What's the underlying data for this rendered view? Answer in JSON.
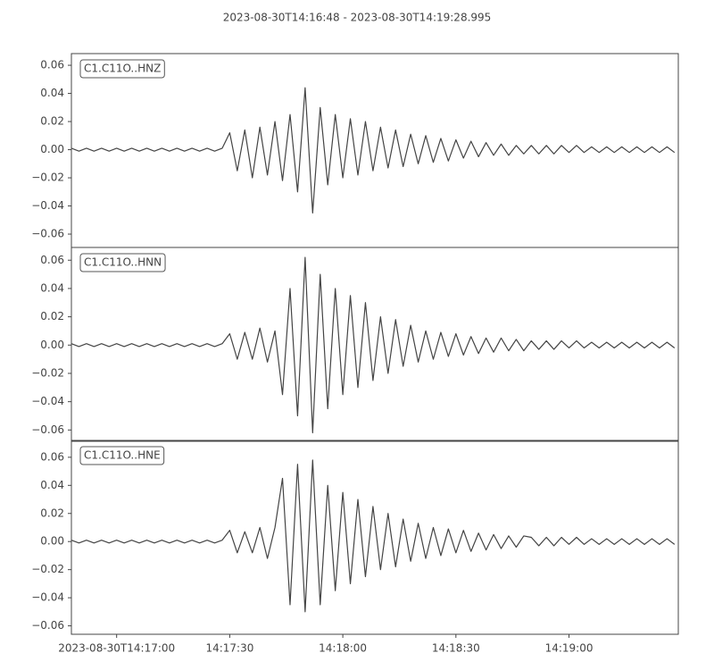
{
  "chart_data": [
    {
      "type": "line",
      "title": "2023-08-30T14:16:48  -  2023-08-30T14:19:28.995",
      "x": [
        "14:16:48",
        "14:16:50",
        "14:16:52",
        "14:16:54",
        "14:16:56",
        "14:16:58",
        "14:17:00",
        "14:17:02",
        "14:17:04",
        "14:17:06",
        "14:17:08",
        "14:17:10",
        "14:17:12",
        "14:17:14",
        "14:17:16",
        "14:17:18",
        "14:17:20",
        "14:17:22",
        "14:17:24",
        "14:17:26",
        "14:17:28",
        "14:17:30",
        "14:17:32",
        "14:17:34",
        "14:17:36",
        "14:17:38",
        "14:17:40",
        "14:17:42",
        "14:17:44",
        "14:17:46",
        "14:17:48",
        "14:17:50",
        "14:17:52",
        "14:17:54",
        "14:17:56",
        "14:17:58",
        "14:18:00",
        "14:18:02",
        "14:18:04",
        "14:18:06",
        "14:18:08",
        "14:18:10",
        "14:18:12",
        "14:18:14",
        "14:18:16",
        "14:18:18",
        "14:18:20",
        "14:18:22",
        "14:18:24",
        "14:18:26",
        "14:18:28",
        "14:18:30",
        "14:18:32",
        "14:18:34",
        "14:18:36",
        "14:18:38",
        "14:18:40",
        "14:18:42",
        "14:18:44",
        "14:18:46",
        "14:18:48",
        "14:18:50",
        "14:18:52",
        "14:18:54",
        "14:18:56",
        "14:18:58",
        "14:19:00",
        "14:19:02",
        "14:19:04",
        "14:19:06",
        "14:19:08",
        "14:19:10",
        "14:19:12",
        "14:19:14",
        "14:19:16",
        "14:19:18",
        "14:19:20",
        "14:19:22",
        "14:19:24",
        "14:19:26",
        "14:19:28"
      ],
      "series": [
        {
          "name": "C1.C11O..HNZ",
          "color": "#444444",
          "values": [
            0.001,
            -0.001,
            0.001,
            -0.001,
            0.001,
            -0.001,
            0.001,
            -0.001,
            0.001,
            -0.001,
            0.001,
            -0.001,
            0.001,
            -0.001,
            0.001,
            -0.001,
            0.001,
            -0.001,
            0.001,
            -0.001,
            0.001,
            0.012,
            -0.015,
            0.014,
            -0.02,
            0.016,
            -0.018,
            0.02,
            -0.022,
            0.025,
            -0.03,
            0.044,
            -0.045,
            0.03,
            -0.025,
            0.025,
            -0.02,
            0.022,
            -0.018,
            0.02,
            -0.015,
            0.016,
            -0.013,
            0.014,
            -0.012,
            0.011,
            -0.01,
            0.01,
            -0.009,
            0.008,
            -0.008,
            0.007,
            -0.006,
            0.006,
            -0.005,
            0.005,
            -0.004,
            0.004,
            -0.004,
            0.003,
            -0.003,
            0.003,
            -0.003,
            0.003,
            -0.003,
            0.003,
            -0.002,
            0.003,
            -0.002,
            0.002,
            -0.002,
            0.002,
            -0.002,
            0.002,
            -0.002,
            0.002,
            -0.002,
            0.002,
            -0.002,
            0.002,
            -0.002
          ]
        }
      ],
      "xlim": [
        "14:16:48",
        "14:19:28.995"
      ],
      "ylim": [
        -0.0695,
        0.0683
      ],
      "yticks": [
        {
          "value": -0.06,
          "label": "−0.06"
        },
        {
          "value": -0.04,
          "label": "−0.04"
        },
        {
          "value": -0.02,
          "label": "−0.02"
        },
        {
          "value": 0,
          "label": "0.00"
        },
        0.02,
        0.04,
        0.06
      ]
    },
    {
      "type": "line",
      "x": [
        "14:16:48",
        "14:16:50",
        "14:16:52",
        "14:16:54",
        "14:16:56",
        "14:16:58",
        "14:17:00",
        "14:17:02",
        "14:17:04",
        "14:17:06",
        "14:17:08",
        "14:17:10",
        "14:17:12",
        "14:17:14",
        "14:17:16",
        "14:17:18",
        "14:17:20",
        "14:17:22",
        "14:17:24",
        "14:17:26",
        "14:17:28",
        "14:17:30",
        "14:17:32",
        "14:17:34",
        "14:17:36",
        "14:17:38",
        "14:17:40",
        "14:17:42",
        "14:17:44",
        "14:17:46",
        "14:17:48",
        "14:17:50",
        "14:17:52",
        "14:17:54",
        "14:17:56",
        "14:17:58",
        "14:18:00",
        "14:18:02",
        "14:18:04",
        "14:18:06",
        "14:18:08",
        "14:18:10",
        "14:18:12",
        "14:18:14",
        "14:18:16",
        "14:18:18",
        "14:18:20",
        "14:18:22",
        "14:18:24",
        "14:18:26",
        "14:18:28",
        "14:18:30",
        "14:18:32",
        "14:18:34",
        "14:18:36",
        "14:18:38",
        "14:18:40",
        "14:18:42",
        "14:18:44",
        "14:18:46",
        "14:18:48",
        "14:18:50",
        "14:18:52",
        "14:18:54",
        "14:18:56",
        "14:18:58",
        "14:19:00",
        "14:19:02",
        "14:19:04",
        "14:19:06",
        "14:19:08",
        "14:19:10",
        "14:19:12",
        "14:19:14",
        "14:19:16",
        "14:19:18",
        "14:19:20",
        "14:19:22",
        "14:19:24",
        "14:19:26",
        "14:19:28"
      ],
      "series": [
        {
          "name": "C1.C11O..HNN",
          "color": "#444444",
          "values": [
            0.001,
            -0.001,
            0.001,
            -0.001,
            0.001,
            -0.001,
            0.001,
            -0.001,
            0.001,
            -0.001,
            0.001,
            -0.001,
            0.001,
            -0.001,
            0.001,
            -0.001,
            0.001,
            -0.001,
            0.001,
            -0.001,
            0.001,
            0.008,
            -0.01,
            0.009,
            -0.01,
            0.012,
            -0.012,
            0.01,
            -0.035,
            0.04,
            -0.05,
            0.062,
            -0.062,
            0.05,
            -0.045,
            0.04,
            -0.035,
            0.035,
            -0.03,
            0.03,
            -0.025,
            0.02,
            -0.02,
            0.018,
            -0.015,
            0.014,
            -0.012,
            0.01,
            -0.01,
            0.009,
            -0.008,
            0.008,
            -0.007,
            0.006,
            -0.006,
            0.005,
            -0.005,
            0.005,
            -0.004,
            0.004,
            -0.004,
            0.003,
            -0.003,
            0.003,
            -0.003,
            0.003,
            -0.002,
            0.003,
            -0.002,
            0.002,
            -0.002,
            0.002,
            -0.002,
            0.002,
            -0.002,
            0.002,
            -0.002,
            0.002,
            -0.002,
            0.002,
            -0.002
          ]
        }
      ],
      "xlim": [
        "14:16:48",
        "14:19:28.995"
      ],
      "ylim": [
        -0.068,
        0.069
      ],
      "yticks": [
        {
          "value": -0.06,
          "label": "−0.06"
        },
        {
          "value": -0.04,
          "label": "−0.04"
        },
        {
          "value": -0.02,
          "label": "−0.02"
        },
        {
          "value": 0,
          "label": "0.00"
        },
        0.02,
        0.04,
        0.06
      ]
    },
    {
      "type": "line",
      "x": [
        "14:16:48",
        "14:16:50",
        "14:16:52",
        "14:16:54",
        "14:16:56",
        "14:16:58",
        "14:17:00",
        "14:17:02",
        "14:17:04",
        "14:17:06",
        "14:17:08",
        "14:17:10",
        "14:17:12",
        "14:17:14",
        "14:17:16",
        "14:17:18",
        "14:17:20",
        "14:17:22",
        "14:17:24",
        "14:17:26",
        "14:17:28",
        "14:17:30",
        "14:17:32",
        "14:17:34",
        "14:17:36",
        "14:17:38",
        "14:17:40",
        "14:17:42",
        "14:17:44",
        "14:17:46",
        "14:17:48",
        "14:17:50",
        "14:17:52",
        "14:17:54",
        "14:17:56",
        "14:17:58",
        "14:18:00",
        "14:18:02",
        "14:18:04",
        "14:18:06",
        "14:18:08",
        "14:18:10",
        "14:18:12",
        "14:18:14",
        "14:18:16",
        "14:18:18",
        "14:18:20",
        "14:18:22",
        "14:18:24",
        "14:18:26",
        "14:18:28",
        "14:18:30",
        "14:18:32",
        "14:18:34",
        "14:18:36",
        "14:18:38",
        "14:18:40",
        "14:18:42",
        "14:18:44",
        "14:18:46",
        "14:18:48",
        "14:18:50",
        "14:18:52",
        "14:18:54",
        "14:18:56",
        "14:18:58",
        "14:19:00",
        "14:19:02",
        "14:19:04",
        "14:19:06",
        "14:19:08",
        "14:19:10",
        "14:19:12",
        "14:19:14",
        "14:19:16",
        "14:19:18",
        "14:19:20",
        "14:19:22",
        "14:19:24",
        "14:19:26",
        "14:19:28"
      ],
      "series": [
        {
          "name": "C1.C11O..HNE",
          "color": "#444444",
          "values": [
            0.001,
            -0.001,
            0.001,
            -0.001,
            0.001,
            -0.001,
            0.001,
            -0.001,
            0.001,
            -0.001,
            0.001,
            -0.001,
            0.001,
            -0.001,
            0.001,
            -0.001,
            0.001,
            -0.001,
            0.001,
            -0.001,
            0.001,
            0.008,
            -0.008,
            0.007,
            -0.008,
            0.01,
            -0.012,
            0.01,
            0.045,
            -0.045,
            0.055,
            -0.05,
            0.058,
            -0.045,
            0.04,
            -0.035,
            0.035,
            -0.03,
            0.03,
            -0.025,
            0.025,
            -0.02,
            0.02,
            -0.018,
            0.016,
            -0.014,
            0.013,
            -0.012,
            0.01,
            -0.01,
            0.009,
            -0.008,
            0.008,
            -0.007,
            0.006,
            -0.006,
            0.005,
            -0.005,
            0.004,
            -0.004,
            0.004,
            0.003,
            -0.003,
            0.003,
            -0.003,
            0.003,
            -0.002,
            0.003,
            -0.002,
            0.002,
            -0.002,
            0.002,
            -0.002,
            0.002,
            -0.002,
            0.002,
            -0.002,
            0.002,
            -0.002,
            0.002,
            -0.002
          ]
        }
      ],
      "xlim": [
        "14:16:48",
        "14:19:28.995"
      ],
      "ylim": [
        -0.066,
        0.072
      ],
      "yticks": [
        {
          "value": -0.06,
          "label": "−0.06"
        },
        {
          "value": -0.04,
          "label": "−0.04"
        },
        {
          "value": -0.02,
          "label": "−0.02"
        },
        {
          "value": 0,
          "label": "0.00"
        },
        0.02,
        0.04,
        0.06
      ],
      "xticks": [
        {
          "value": "14:17:00",
          "label": "2023-08-30T14:17:00"
        },
        "14:17:30",
        "14:18:00",
        "14:18:30",
        "14:19:00"
      ]
    }
  ]
}
